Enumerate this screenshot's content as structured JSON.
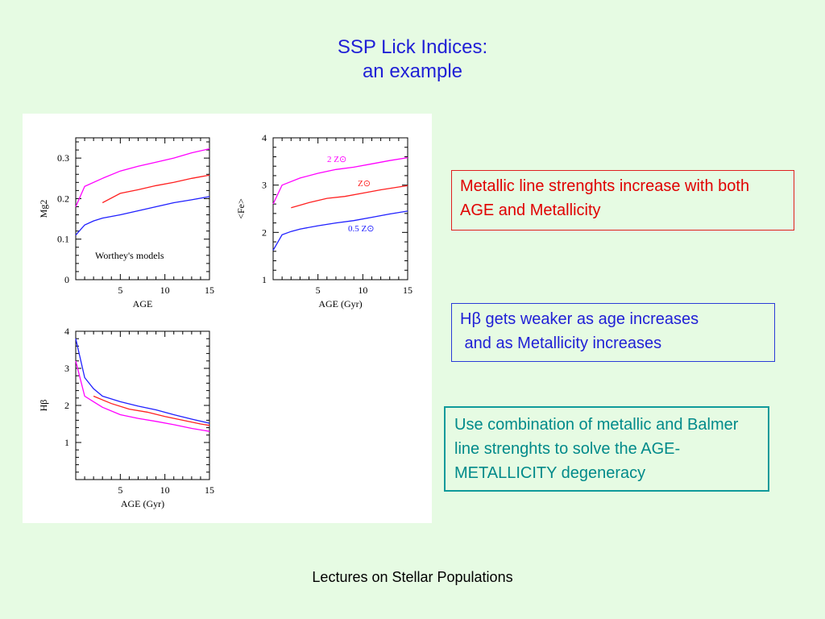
{
  "slide": {
    "title_line1": "SSP Lick Indices:",
    "title_line2": "an example",
    "footer": "Lectures on Stellar Populations",
    "colors": {
      "background": "#e6fbe3",
      "title": "#1f1fd6",
      "red_box": "#e00000",
      "blue_box": "#1f1fd6",
      "teal_box": "#008a8a"
    }
  },
  "notes": {
    "metallic": "Metallic line strenghts increase with both AGE and Metallicity",
    "hbeta": "Hβ gets weaker as age increases\n and as Metallicity increases",
    "combination": "Use combination of metallic and Balmer line strenghts to solve the AGE-METALLICITY degeneracy"
  },
  "chart_data": [
    {
      "type": "line",
      "xlabel": "AGE",
      "ylabel": "Mg2",
      "xlim": [
        0,
        15
      ],
      "ylim": [
        0,
        0.35
      ],
      "xticks": [
        5,
        10,
        15
      ],
      "yticks": [
        0,
        0.1,
        0.2,
        0.3
      ],
      "ytick_labels": [
        "0",
        "0.1",
        "0.2",
        "0.3"
      ],
      "annotation": "Worthey's models",
      "series": [
        {
          "color": "#ff00ff",
          "x": [
            0,
            1,
            3,
            5,
            7,
            9,
            11,
            13,
            15
          ],
          "y": [
            0.18,
            0.23,
            0.25,
            0.268,
            0.28,
            0.29,
            0.3,
            0.313,
            0.323
          ]
        },
        {
          "color": "#ff2020",
          "x": [
            3,
            5,
            7,
            9,
            11,
            13,
            15
          ],
          "y": [
            0.19,
            0.213,
            0.222,
            0.232,
            0.24,
            0.25,
            0.258
          ]
        },
        {
          "color": "#2020ff",
          "x": [
            0,
            1,
            2,
            3,
            5,
            7,
            9,
            11,
            13,
            15
          ],
          "y": [
            0.11,
            0.135,
            0.145,
            0.152,
            0.16,
            0.17,
            0.18,
            0.19,
            0.197,
            0.205
          ]
        }
      ]
    },
    {
      "type": "line",
      "xlabel": "AGE (Gyr)",
      "ylabel": "<Fe>",
      "xlim": [
        0,
        15
      ],
      "ylim": [
        1,
        4
      ],
      "xticks": [
        5,
        10,
        15
      ],
      "yticks": [
        1,
        2,
        3,
        4
      ],
      "ytick_labels": [
        "1",
        "2",
        "3",
        "4"
      ],
      "series_labels": [
        "2 Z⊙",
        "Z⊙",
        "0.5 Z⊙"
      ],
      "series": [
        {
          "name": "2 Z⊙",
          "color": "#ff00ff",
          "x": [
            0,
            1,
            3,
            5,
            7,
            9,
            11,
            13,
            15
          ],
          "y": [
            2.6,
            3.0,
            3.15,
            3.25,
            3.33,
            3.38,
            3.45,
            3.52,
            3.58
          ]
        },
        {
          "name": "Z⊙",
          "color": "#ff2020",
          "x": [
            2,
            4,
            6,
            8,
            10,
            12,
            14,
            15
          ],
          "y": [
            2.52,
            2.63,
            2.72,
            2.76,
            2.83,
            2.9,
            2.96,
            2.99
          ]
        },
        {
          "name": "0.5 Z⊙",
          "color": "#2020ff",
          "x": [
            0,
            1,
            2,
            3,
            5,
            7,
            9,
            11,
            13,
            15
          ],
          "y": [
            1.62,
            1.95,
            2.02,
            2.07,
            2.14,
            2.2,
            2.25,
            2.32,
            2.39,
            2.45
          ]
        }
      ]
    },
    {
      "type": "line",
      "xlabel": "AGE (Gyr)",
      "ylabel": "Hβ",
      "xlim": [
        0,
        15
      ],
      "ylim": [
        0,
        4
      ],
      "xticks": [
        5,
        10,
        15
      ],
      "yticks": [
        1,
        2,
        3,
        4
      ],
      "ytick_labels": [
        "1",
        "2",
        "3",
        "4"
      ],
      "series": [
        {
          "color": "#2020ff",
          "x": [
            0,
            1,
            2,
            3,
            5,
            7,
            9,
            11,
            13,
            15
          ],
          "y": [
            3.8,
            2.75,
            2.45,
            2.25,
            2.1,
            1.98,
            1.88,
            1.75,
            1.63,
            1.52
          ]
        },
        {
          "color": "#ff2020",
          "x": [
            2,
            4,
            6,
            8,
            10,
            12,
            14,
            15
          ],
          "y": [
            2.25,
            2.05,
            1.9,
            1.82,
            1.7,
            1.6,
            1.5,
            1.46
          ]
        },
        {
          "color": "#ff00ff",
          "x": [
            0,
            1,
            2,
            3,
            5,
            7,
            9,
            11,
            13,
            15
          ],
          "y": [
            3.2,
            2.25,
            2.1,
            1.95,
            1.75,
            1.65,
            1.57,
            1.48,
            1.38,
            1.3
          ]
        }
      ]
    }
  ]
}
